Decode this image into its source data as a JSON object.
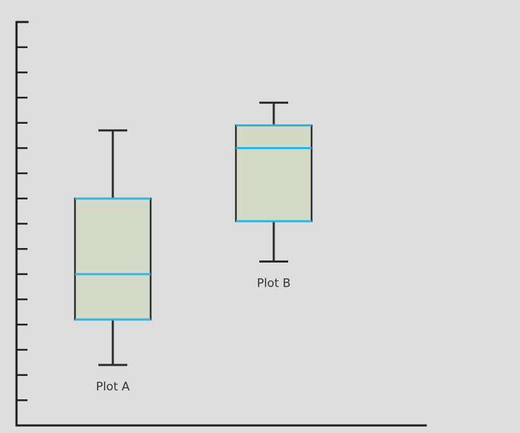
{
  "colors": {
    "background": "#dedede",
    "box_fill": "#d3dbc8",
    "box_edge": "#2a2a2a",
    "quartile_line": "#29b6e6",
    "median_line": "#29b6e6",
    "whisker": "#2a2a2a",
    "axis": "#1c1c1c",
    "label": "#333333"
  },
  "chart_data": {
    "type": "boxplot",
    "title": "",
    "xlabel": "",
    "ylabel": "",
    "y_ticks_labeled": false,
    "x_ticks_labeled": false,
    "ylim": [
      0,
      16
    ],
    "y_tick_values": [
      1,
      2,
      3,
      4,
      5,
      6,
      7,
      8,
      9,
      10,
      11,
      12,
      13,
      14,
      15,
      16
    ],
    "grid": false,
    "legend": "none",
    "boxes": [
      {
        "name": "Plot A",
        "label_placement": "below",
        "whisker_low": 2.4,
        "q1": 4.2,
        "median": 6.0,
        "q3": 9.0,
        "whisker_high": 11.7
      },
      {
        "name": "Plot B",
        "label_placement": "below",
        "whisker_low": 6.5,
        "q1": 8.1,
        "median": 11.0,
        "q3": 11.9,
        "whisker_high": 12.8
      }
    ]
  }
}
